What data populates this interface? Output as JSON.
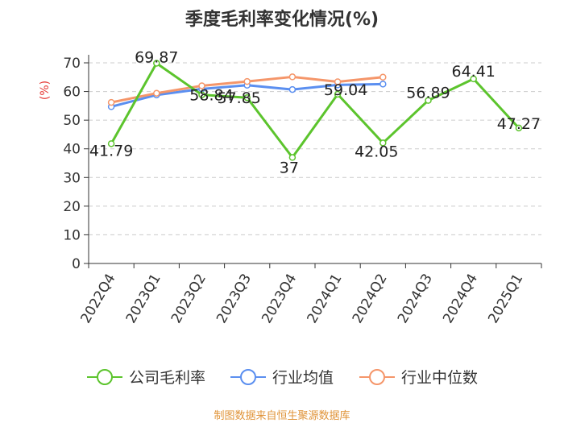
{
  "chart_data": {
    "type": "line",
    "title": "季度毛利率变化情况(%)",
    "ylabel": "(%)",
    "xlabel": "",
    "ylim": [
      0,
      70
    ],
    "yticks": [
      0,
      10,
      20,
      30,
      40,
      50,
      60,
      70
    ],
    "categories": [
      "2022Q4",
      "2023Q1",
      "2023Q2",
      "2023Q3",
      "2023Q4",
      "2024Q1",
      "2024Q2",
      "2024Q3",
      "2024Q4",
      "2025Q1"
    ],
    "series": [
      {
        "name": "公司毛利率",
        "color": "#5cc42d",
        "values": [
          41.79,
          69.87,
          58.84,
          57.85,
          37,
          59.04,
          42.05,
          56.89,
          64.41,
          47.27
        ],
        "labels": [
          "41.79",
          "69.87",
          "58.84",
          "57.85",
          "37",
          "59.04",
          "42.05",
          "56.89",
          "64.41",
          "47.27"
        ]
      },
      {
        "name": "行业均值",
        "color": "#5b8ff0",
        "values": [
          54.7,
          58.8,
          60.9,
          62.2,
          60.7,
          62.3,
          62.6,
          null,
          null,
          null
        ]
      },
      {
        "name": "行业中位数",
        "color": "#f5966a",
        "values": [
          56.2,
          59.4,
          62.0,
          63.5,
          65.1,
          63.4,
          65.0,
          null,
          null,
          null
        ]
      }
    ],
    "grid": "horizontal-dashed",
    "legend": "bottom"
  },
  "footer": {
    "source": "制图数据来自恒生聚源数据库"
  }
}
